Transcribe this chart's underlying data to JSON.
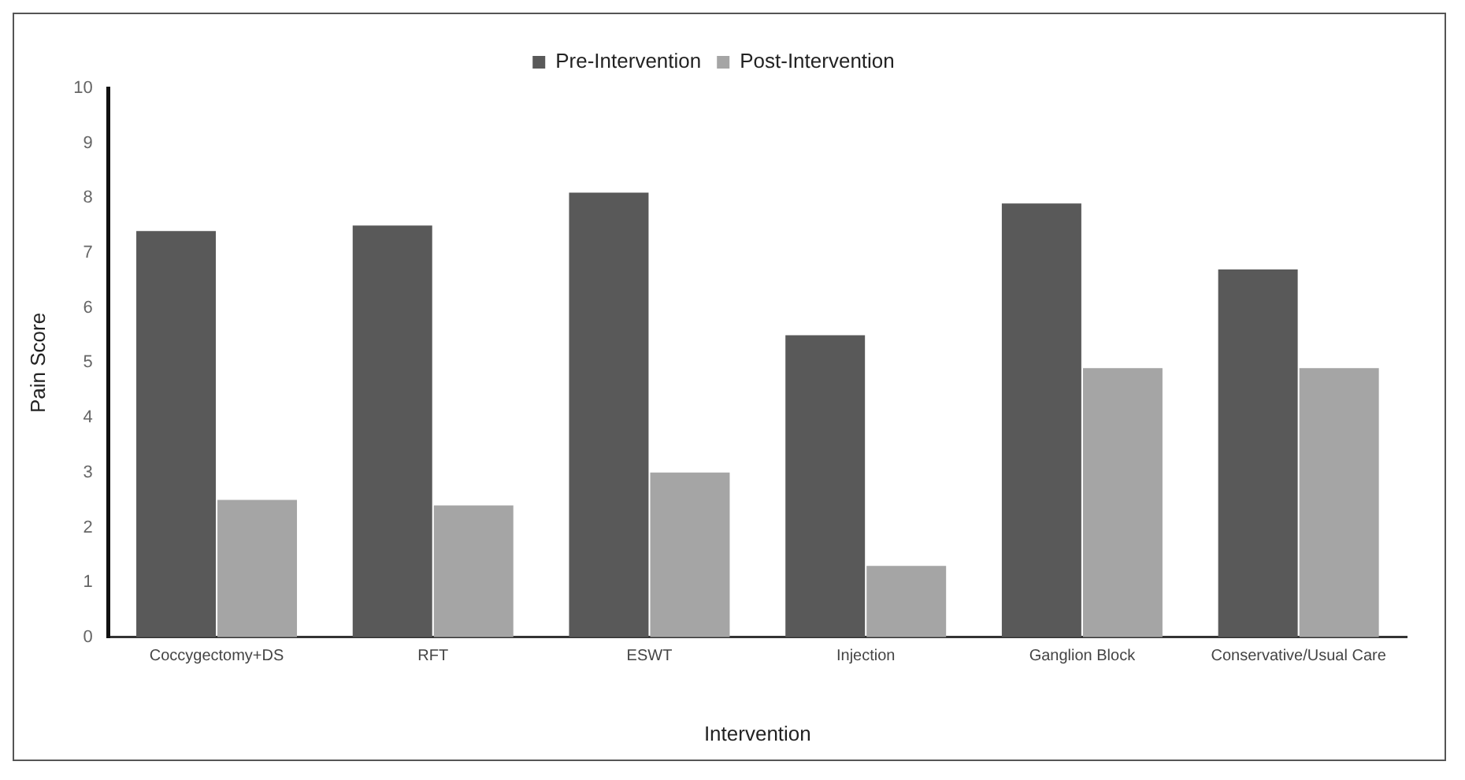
{
  "chart_data": {
    "type": "bar",
    "xlabel": "Intervention",
    "ylabel": "Pain Score",
    "categories": [
      "Coccygectomy+DS",
      "RFT",
      "ESWT",
      "Injection",
      "Ganglion Block",
      "Conservative/Usual Care"
    ],
    "series": [
      {
        "name": "Pre-Intervention",
        "color": "#595959",
        "values": [
          7.4,
          7.5,
          8.1,
          5.5,
          7.9,
          6.7
        ]
      },
      {
        "name": "Post-Intervention",
        "color": "#a5a5a5",
        "values": [
          2.5,
          2.4,
          3.0,
          1.3,
          4.9,
          4.9
        ]
      }
    ],
    "ylim": [
      0,
      10
    ],
    "yticks": [
      0,
      1,
      2,
      3,
      4,
      5,
      6,
      7,
      8,
      9,
      10
    ],
    "grid": false,
    "legend": "top"
  }
}
